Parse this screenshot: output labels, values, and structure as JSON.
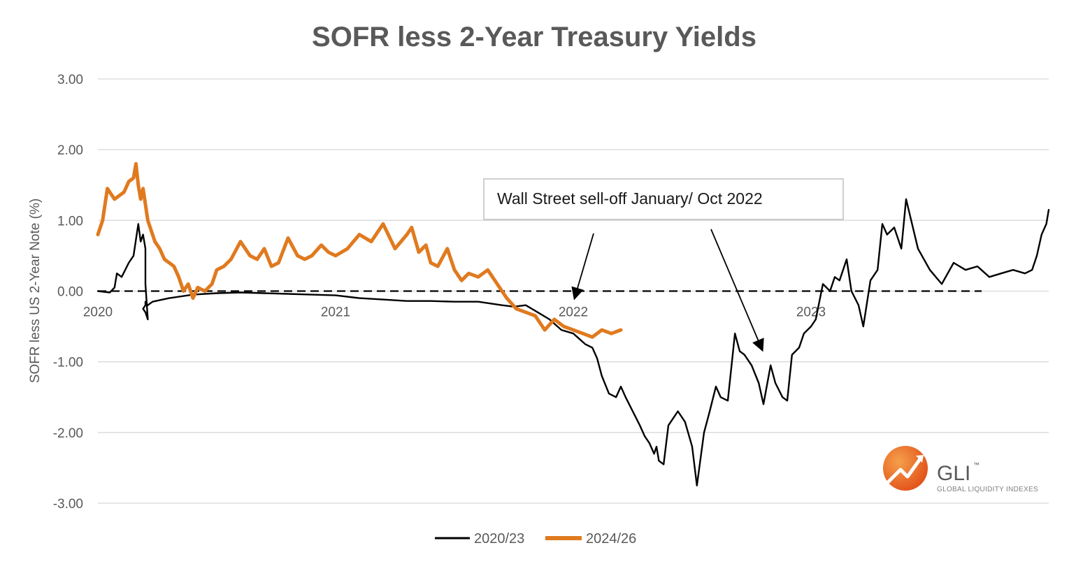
{
  "chart_data": {
    "type": "line",
    "title": "SOFR less 2-Year Treasury Yields",
    "ylabel": "SOFR less US 2-Year Note (%)",
    "xlabel": "",
    "ylim": [
      -3,
      3
    ],
    "yticks": [
      "3.00",
      "2.00",
      "1.00",
      "0.00",
      "-1.00",
      "-2.00",
      "-3.00"
    ],
    "xlim": [
      0,
      4
    ],
    "xticks": [
      {
        "label": "2020",
        "x": 0
      },
      {
        "label": "2021",
        "x": 1
      },
      {
        "label": "2022",
        "x": 2
      },
      {
        "label": "2023",
        "x": 3
      }
    ],
    "grid": "horizontal",
    "legend_position": "bottom-center",
    "zero_line": "dashed",
    "series": [
      {
        "name": "2020/23",
        "color": "#000000",
        "x": [
          0,
          0.05,
          0.07,
          0.08,
          0.1,
          0.13,
          0.15,
          0.17,
          0.18,
          0.19,
          0.2,
          0.2,
          0.21,
          0.2,
          0.19,
          0.2,
          0.2,
          0.21,
          0.23,
          0.3,
          0.4,
          0.5,
          0.6,
          0.7,
          0.8,
          0.9,
          1.0,
          1.1,
          1.2,
          1.3,
          1.4,
          1.5,
          1.6,
          1.7,
          1.75,
          1.8,
          1.85,
          1.9,
          1.95,
          2.0,
          2.05,
          2.08,
          2.1,
          2.12,
          2.15,
          2.18,
          2.2,
          2.22,
          2.25,
          2.28,
          2.3,
          2.32,
          2.34,
          2.35,
          2.36,
          2.38,
          2.4,
          2.42,
          2.44,
          2.45,
          2.47,
          2.5,
          2.52,
          2.55,
          2.57,
          2.6,
          2.62,
          2.65,
          2.68,
          2.7,
          2.72,
          2.75,
          2.78,
          2.8,
          2.83,
          2.85,
          2.88,
          2.9,
          2.92,
          2.95,
          2.97,
          3.0,
          3.02,
          3.05,
          3.08,
          3.1,
          3.12,
          3.15,
          3.17,
          3.2,
          3.22,
          3.25,
          3.28,
          3.3,
          3.32,
          3.35,
          3.38,
          3.4,
          3.45,
          3.5,
          3.55,
          3.6,
          3.65,
          3.7,
          3.75,
          3.8,
          3.85,
          3.9,
          3.93,
          3.95,
          3.97,
          3.99,
          4.0
        ],
        "values": [
          0.0,
          -0.02,
          0.05,
          0.25,
          0.2,
          0.4,
          0.5,
          0.95,
          0.7,
          0.8,
          0.6,
          0.1,
          -0.4,
          -0.3,
          -0.25,
          -0.2,
          -0.15,
          -0.2,
          -0.15,
          -0.1,
          -0.05,
          -0.03,
          -0.02,
          -0.03,
          -0.04,
          -0.05,
          -0.06,
          -0.1,
          -0.12,
          -0.14,
          -0.14,
          -0.15,
          -0.15,
          -0.2,
          -0.22,
          -0.2,
          -0.3,
          -0.4,
          -0.55,
          -0.6,
          -0.75,
          -0.8,
          -0.95,
          -1.2,
          -1.45,
          -1.5,
          -1.35,
          -1.5,
          -1.7,
          -1.9,
          -2.05,
          -2.15,
          -2.3,
          -2.2,
          -2.4,
          -2.45,
          -1.9,
          -1.8,
          -1.7,
          -1.75,
          -1.85,
          -2.2,
          -2.75,
          -2.0,
          -1.75,
          -1.35,
          -1.5,
          -1.55,
          -0.6,
          -0.85,
          -0.9,
          -1.05,
          -1.3,
          -1.6,
          -1.05,
          -1.3,
          -1.5,
          -1.55,
          -0.9,
          -0.8,
          -0.6,
          -0.5,
          -0.4,
          0.1,
          0.0,
          0.2,
          0.15,
          0.45,
          0.0,
          -0.2,
          -0.5,
          0.15,
          0.3,
          0.95,
          0.8,
          0.9,
          0.6,
          1.3,
          0.6,
          0.3,
          0.1,
          0.4,
          0.3,
          0.35,
          0.2,
          0.25,
          0.3,
          0.25,
          0.3,
          0.5,
          0.8,
          0.95,
          1.15
        ]
      },
      {
        "name": "2024/26",
        "color": "#E07A1F",
        "x": [
          0,
          0.02,
          0.04,
          0.05,
          0.07,
          0.09,
          0.11,
          0.13,
          0.15,
          0.16,
          0.17,
          0.18,
          0.19,
          0.21,
          0.22,
          0.24,
          0.26,
          0.28,
          0.3,
          0.32,
          0.34,
          0.36,
          0.38,
          0.4,
          0.42,
          0.45,
          0.48,
          0.5,
          0.53,
          0.56,
          0.6,
          0.64,
          0.67,
          0.7,
          0.73,
          0.76,
          0.8,
          0.84,
          0.87,
          0.9,
          0.94,
          0.97,
          1.0,
          1.05,
          1.1,
          1.15,
          1.2,
          1.25,
          1.3,
          1.32,
          1.35,
          1.38,
          1.4,
          1.43,
          1.47,
          1.5,
          1.53,
          1.56,
          1.6,
          1.64,
          1.68,
          1.72,
          1.76,
          1.8,
          1.84,
          1.88,
          1.92,
          1.96,
          2.0,
          2.04,
          2.08,
          2.12,
          2.16,
          2.2
        ],
        "values": [
          0.8,
          1.0,
          1.45,
          1.4,
          1.3,
          1.35,
          1.4,
          1.55,
          1.6,
          1.8,
          1.5,
          1.3,
          1.45,
          1.0,
          0.9,
          0.7,
          0.6,
          0.45,
          0.4,
          0.35,
          0.2,
          0.0,
          0.1,
          -0.1,
          0.05,
          0.0,
          0.1,
          0.3,
          0.35,
          0.45,
          0.7,
          0.5,
          0.45,
          0.6,
          0.35,
          0.4,
          0.75,
          0.5,
          0.45,
          0.5,
          0.65,
          0.55,
          0.5,
          0.6,
          0.8,
          0.7,
          0.95,
          0.6,
          0.8,
          0.9,
          0.55,
          0.65,
          0.4,
          0.35,
          0.6,
          0.3,
          0.15,
          0.25,
          0.2,
          0.3,
          0.1,
          -0.1,
          -0.25,
          -0.3,
          -0.35,
          -0.55,
          -0.4,
          -0.5,
          -0.55,
          -0.6,
          -0.65,
          -0.55,
          -0.6,
          -0.55
        ]
      }
    ],
    "annotations": [
      {
        "text": "Wall Street sell-off January/ Oct 2022"
      }
    ]
  },
  "legend": {
    "items": [
      {
        "label": "2020/23"
      },
      {
        "label": "2024/26"
      }
    ]
  },
  "logo": {
    "mark": "GLI",
    "tm": "™",
    "subtitle": "GLOBAL LIQUIDITY INDEXES",
    "icon": "gli-ball-icon",
    "colors": {
      "ball": "#E8641B",
      "ball_light": "#F5A04A",
      "arrow": "#ffffff"
    }
  },
  "colors": {
    "grid": "#D9D9D9",
    "axis_text": "#595959",
    "zero_line": "#000000"
  }
}
